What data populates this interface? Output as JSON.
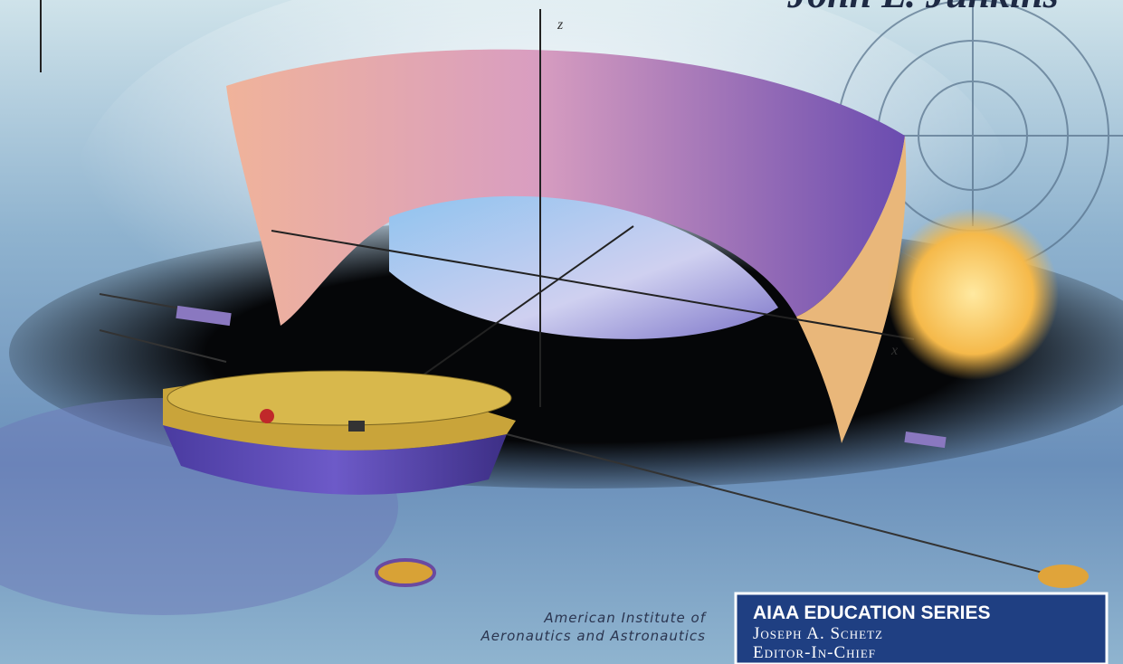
{
  "cover": {
    "author": "John L. Junkins",
    "axis_labels": [
      "z",
      "x"
    ],
    "publisher": [
      "American Institute of",
      "Aeronautics and Astronautics"
    ],
    "series": {
      "title": "AIAA EDUCATION SERIES",
      "editor": "Joseph A. Schetz",
      "role": "Editor-In-Chief"
    }
  }
}
